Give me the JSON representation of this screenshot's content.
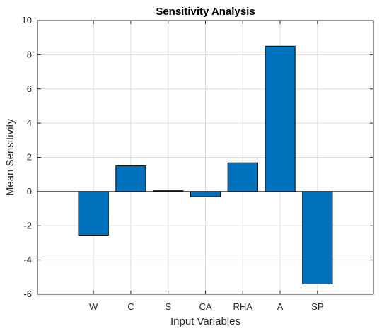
{
  "chart_data": {
    "type": "bar",
    "title": "Sensitivity Analysis",
    "xlabel": "Input Variables",
    "ylabel": "Mean Sensitivity",
    "categories": [
      "W",
      "C",
      "S",
      "CA",
      "RHA",
      "A",
      "SP"
    ],
    "values": [
      -2.55,
      1.5,
      0.05,
      -0.3,
      1.68,
      8.5,
      -5.4
    ],
    "ylim": [
      -6,
      10
    ],
    "yticks": [
      -6,
      -4,
      -2,
      0,
      2,
      4,
      6,
      8,
      10
    ],
    "grid": true,
    "bar_color": "#0072BD"
  }
}
